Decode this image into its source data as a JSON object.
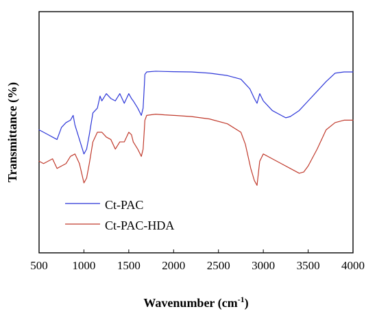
{
  "chart_data": {
    "type": "line",
    "xlabel": "Wavenumber (cm",
    "xlabel_sup": "-1",
    "xlabel_close": ")",
    "ylabel": "Transmittance (%)",
    "xlim": [
      500,
      4000
    ],
    "ylim": [
      0,
      100
    ],
    "x_ticks": [
      "500",
      "1000",
      "1500",
      "2000",
      "2500",
      "3000",
      "3500",
      "4000"
    ],
    "y_ticks_labeled": false,
    "grid": false,
    "legend_position": "lower-left",
    "series": [
      {
        "name": "Ct-PAC",
        "color": "#2b35d8",
        "x": [
          500,
          550,
          600,
          650,
          700,
          750,
          800,
          850,
          880,
          900,
          950,
          1000,
          1030,
          1060,
          1100,
          1150,
          1180,
          1200,
          1250,
          1300,
          1350,
          1400,
          1450,
          1500,
          1530,
          1550,
          1600,
          1640,
          1660,
          1680,
          1700,
          1800,
          1900,
          2000,
          2200,
          2400,
          2600,
          2750,
          2850,
          2900,
          2930,
          2960,
          3000,
          3050,
          3100,
          3200,
          3250,
          3300,
          3400,
          3500,
          3600,
          3700,
          3800,
          3900,
          4000
        ],
        "values": [
          51,
          50,
          49,
          48,
          47,
          52,
          54,
          55,
          57,
          53,
          47,
          41,
          43,
          49,
          58,
          60,
          65,
          63,
          66,
          64,
          63,
          66,
          62,
          66,
          64,
          63,
          60,
          57,
          60,
          74,
          75,
          75.3,
          75.2,
          75.1,
          75,
          74.5,
          73.5,
          72,
          68,
          64,
          62,
          66,
          63,
          61,
          59,
          57,
          56,
          56.5,
          59,
          63,
          67,
          71,
          74.5,
          75,
          75
        ]
      },
      {
        "name": "Ct-PAC-HDA",
        "color": "#c0392b",
        "x": [
          500,
          550,
          600,
          650,
          700,
          750,
          800,
          850,
          900,
          950,
          1000,
          1030,
          1060,
          1100,
          1150,
          1200,
          1250,
          1300,
          1350,
          1400,
          1450,
          1500,
          1530,
          1550,
          1600,
          1640,
          1660,
          1680,
          1700,
          1800,
          1900,
          2000,
          2200,
          2400,
          2600,
          2750,
          2800,
          2860,
          2900,
          2930,
          2960,
          3000,
          3100,
          3200,
          3300,
          3400,
          3450,
          3500,
          3600,
          3700,
          3800,
          3900,
          4000
        ],
        "values": [
          38,
          37,
          38,
          39,
          35,
          36,
          37,
          40,
          41,
          37,
          29,
          31,
          37,
          46,
          50,
          50,
          48,
          47,
          43,
          46,
          46,
          50,
          49,
          46,
          43,
          40,
          43,
          55,
          57,
          57.5,
          57.2,
          57,
          56.5,
          55.5,
          53.5,
          50,
          45,
          35,
          30,
          28,
          38,
          41,
          39,
          37,
          35,
          33,
          33.5,
          36,
          43,
          51,
          54,
          55,
          55
        ]
      }
    ]
  }
}
